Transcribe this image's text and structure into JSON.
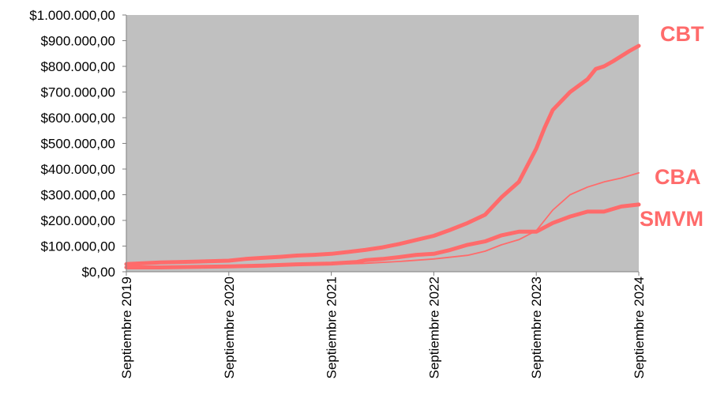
{
  "chart_data": {
    "type": "line",
    "title": "",
    "xlabel": "",
    "ylabel": "",
    "ylim": [
      0,
      1000000
    ],
    "yticks": [
      0,
      100000,
      200000,
      300000,
      400000,
      500000,
      600000,
      700000,
      800000,
      900000,
      1000000
    ],
    "ytick_labels": [
      "$0,00",
      "$100.000,00",
      "$200.000,00",
      "$300.000,00",
      "$400.000,00",
      "$500.000,00",
      "$600.000,00",
      "$700.000,00",
      "$800.000,00",
      "$900.000,00",
      "$1.000.000,00"
    ],
    "xlim": [
      2019.67,
      2024.67
    ],
    "xticks": [
      2019.67,
      2020.67,
      2021.67,
      2022.67,
      2023.67,
      2024.67
    ],
    "xtick_labels": [
      "Septiembre 2019",
      "Septiembre 2020",
      "Septiembre 2021",
      "Septiembre 2022",
      "Septiembre 2023",
      "Septiembre 2024"
    ],
    "grid": false,
    "plot_background": "#c0c0c0",
    "series_color": "#ff6b6b",
    "series": [
      {
        "name": "CBT",
        "x": [
          2019.67,
          2020.0,
          2020.33,
          2020.67,
          2020.83,
          2021.0,
          2021.17,
          2021.33,
          2021.5,
          2021.67,
          2021.83,
          2022.0,
          2022.17,
          2022.33,
          2022.5,
          2022.67,
          2022.83,
          2023.0,
          2023.17,
          2023.33,
          2023.5,
          2023.67,
          2023.75,
          2023.83,
          2024.0,
          2024.17,
          2024.25,
          2024.33,
          2024.42,
          2024.5,
          2024.58,
          2024.67
        ],
        "y": [
          30000,
          36000,
          39000,
          43000,
          50000,
          54000,
          58000,
          63000,
          66000,
          70000,
          77000,
          85000,
          95000,
          108000,
          124000,
          140000,
          163000,
          190000,
          222000,
          290000,
          350000,
          480000,
          560000,
          630000,
          700000,
          750000,
          790000,
          800000,
          820000,
          840000,
          860000,
          880000
        ]
      },
      {
        "name": "CBA",
        "x": [
          2019.67,
          2020.0,
          2020.33,
          2020.67,
          2021.0,
          2021.33,
          2021.67,
          2022.0,
          2022.33,
          2022.67,
          2023.0,
          2023.17,
          2023.33,
          2023.5,
          2023.67,
          2023.75,
          2023.83,
          2024.0,
          2024.17,
          2024.33,
          2024.5,
          2024.67
        ],
        "y": [
          15000,
          17000,
          18000,
          20000,
          22000,
          25000,
          29000,
          33000,
          40000,
          50000,
          64000,
          80000,
          105000,
          125000,
          160000,
          200000,
          240000,
          300000,
          330000,
          350000,
          365000,
          385000
        ]
      },
      {
        "name": "SMVM",
        "x": [
          2019.67,
          2020.0,
          2020.33,
          2020.67,
          2021.0,
          2021.33,
          2021.67,
          2021.92,
          2022.0,
          2022.17,
          2022.33,
          2022.5,
          2022.67,
          2022.83,
          2023.0,
          2023.17,
          2023.33,
          2023.5,
          2023.67,
          2023.83,
          2024.0,
          2024.17,
          2024.33,
          2024.5,
          2024.67
        ],
        "y": [
          16900,
          16900,
          18900,
          20500,
          24000,
          29000,
          32000,
          38000,
          45000,
          50000,
          57000,
          66000,
          70000,
          85000,
          105000,
          118000,
          142000,
          156000,
          156000,
          190000,
          215000,
          234000,
          234000,
          254000,
          262000
        ]
      }
    ]
  }
}
